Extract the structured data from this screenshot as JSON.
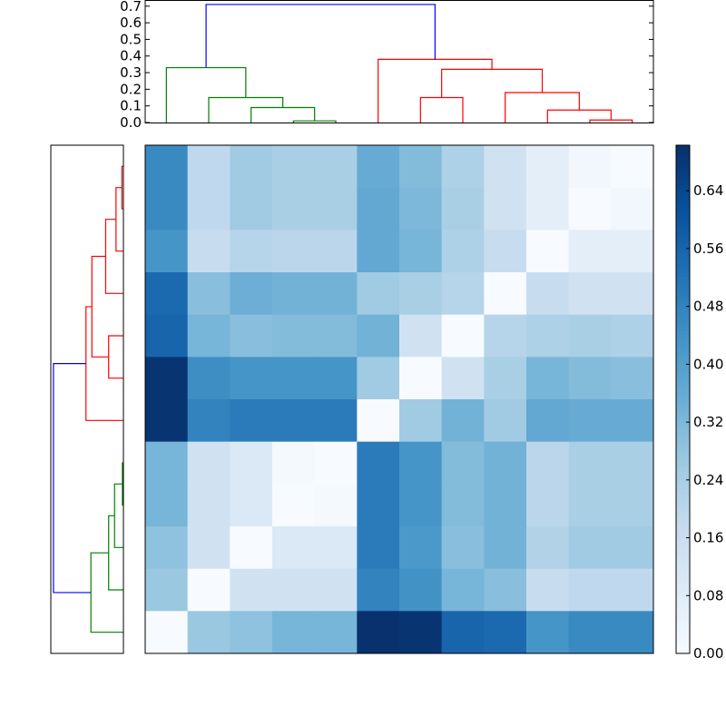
{
  "chart_data": [
    {
      "type": "heatmap",
      "colormap": "Blues",
      "vmin": 0.0,
      "vmax": 0.703,
      "values": [
        [
          0.46,
          0.19,
          0.26,
          0.24,
          0.24,
          0.36,
          0.31,
          0.23,
          0.14,
          0.07,
          0.02,
          0.0
        ],
        [
          0.46,
          0.19,
          0.26,
          0.24,
          0.24,
          0.37,
          0.32,
          0.24,
          0.14,
          0.07,
          0.0,
          0.02
        ],
        [
          0.43,
          0.17,
          0.21,
          0.2,
          0.2,
          0.37,
          0.33,
          0.23,
          0.17,
          0.0,
          0.07,
          0.07
        ],
        [
          0.55,
          0.3,
          0.35,
          0.34,
          0.34,
          0.26,
          0.24,
          0.21,
          0.0,
          0.17,
          0.14,
          0.14
        ],
        [
          0.56,
          0.33,
          0.3,
          0.31,
          0.31,
          0.34,
          0.14,
          0.0,
          0.21,
          0.23,
          0.24,
          0.23
        ],
        [
          0.69,
          0.45,
          0.43,
          0.43,
          0.43,
          0.26,
          0.0,
          0.14,
          0.24,
          0.33,
          0.31,
          0.3
        ],
        [
          0.69,
          0.48,
          0.5,
          0.5,
          0.5,
          0.0,
          0.26,
          0.34,
          0.26,
          0.37,
          0.36,
          0.36
        ],
        [
          0.33,
          0.14,
          0.1,
          0.01,
          0.0,
          0.5,
          0.43,
          0.31,
          0.34,
          0.2,
          0.24,
          0.24
        ],
        [
          0.33,
          0.14,
          0.1,
          0.0,
          0.01,
          0.5,
          0.43,
          0.31,
          0.34,
          0.2,
          0.24,
          0.24
        ],
        [
          0.29,
          0.14,
          0.0,
          0.1,
          0.1,
          0.5,
          0.42,
          0.3,
          0.34,
          0.22,
          0.26,
          0.26
        ],
        [
          0.27,
          0.0,
          0.14,
          0.14,
          0.14,
          0.48,
          0.44,
          0.33,
          0.3,
          0.17,
          0.19,
          0.19
        ],
        [
          0.0,
          0.27,
          0.29,
          0.33,
          0.33,
          0.7,
          0.69,
          0.56,
          0.55,
          0.43,
          0.46,
          0.46
        ]
      ],
      "colorbar": {
        "ticks": [
          0.0,
          0.08,
          0.16,
          0.24,
          0.32,
          0.4,
          0.48,
          0.56,
          0.64
        ],
        "tick_labels": [
          "0.00",
          "0.08",
          "0.16",
          "0.24",
          "0.32",
          "0.40",
          "0.48",
          "0.56",
          "0.64"
        ]
      }
    },
    {
      "type": "dendrogram",
      "orientation": "top",
      "leaves": 12,
      "ylim": [
        0.0,
        0.737
      ],
      "yticks": [
        0.0,
        0.1,
        0.2,
        0.3,
        0.4,
        0.5,
        0.6,
        0.7
      ],
      "ytick_labels": [
        "0.0",
        "0.1",
        "0.2",
        "0.3",
        "0.4",
        "0.5",
        "0.6",
        "0.7"
      ],
      "linkage": [
        {
          "a": 3,
          "b": 4,
          "height": 0.01,
          "color": "#008000"
        },
        {
          "a": 10,
          "b": 11,
          "height": 0.015,
          "color": "#ff0000"
        },
        {
          "a": 9,
          "b": 13,
          "height": 0.075,
          "color": "#ff0000"
        },
        {
          "a": 2,
          "b": 12,
          "height": 0.09,
          "color": "#008000"
        },
        {
          "a": 6,
          "b": 7,
          "height": 0.15,
          "color": "#ff0000"
        },
        {
          "a": 1,
          "b": 15,
          "height": 0.15,
          "color": "#008000"
        },
        {
          "a": 8,
          "b": 14,
          "height": 0.18,
          "color": "#ff0000"
        },
        {
          "a": 16,
          "b": 18,
          "height": 0.32,
          "color": "#ff0000"
        },
        {
          "a": 0,
          "b": 17,
          "height": 0.33,
          "color": "#008000"
        },
        {
          "a": 5,
          "b": 19,
          "height": 0.38,
          "color": "#ff0000"
        },
        {
          "a": 20,
          "b": 21,
          "height": 0.71,
          "color": "#0000ff"
        }
      ]
    },
    {
      "type": "dendrogram",
      "orientation": "left",
      "leaves": 12,
      "xlim": [
        0.737,
        0.0
      ],
      "leaf_order": "bottom-to-top",
      "same_linkage_as": "top"
    }
  ]
}
